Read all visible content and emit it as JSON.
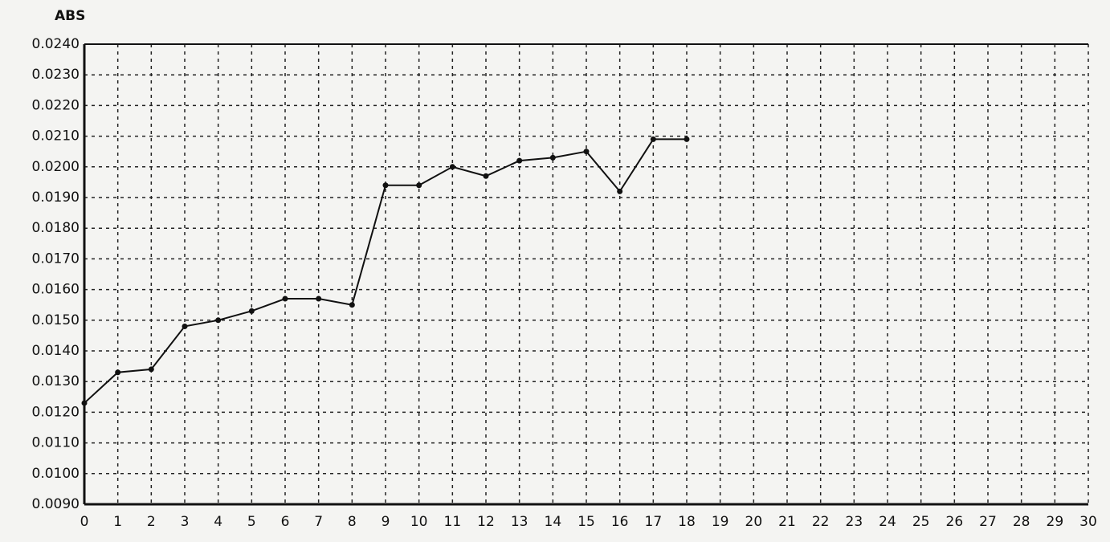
{
  "chart_data": {
    "type": "line",
    "y_label": "ABS",
    "x": [
      0,
      1,
      2,
      3,
      4,
      5,
      6,
      7,
      8,
      9,
      10,
      11,
      12,
      13,
      14,
      15,
      16,
      17,
      18
    ],
    "values": [
      0.0123,
      0.0133,
      0.0134,
      0.0148,
      0.015,
      0.0153,
      0.0157,
      0.0157,
      0.0155,
      0.0194,
      0.0194,
      0.02,
      0.0197,
      0.0202,
      0.0203,
      0.0205,
      0.0192,
      0.0209,
      0.0209
    ],
    "color": "#111111",
    "xlim": [
      0,
      30
    ],
    "xticks": [
      0,
      1,
      2,
      3,
      4,
      5,
      6,
      7,
      8,
      9,
      10,
      11,
      12,
      13,
      14,
      15,
      16,
      17,
      18,
      19,
      20,
      21,
      22,
      23,
      24,
      25,
      26,
      27,
      28,
      29,
      30
    ],
    "ylim": [
      0.009,
      0.024
    ],
    "yticks": [
      {
        "value": 0.009,
        "label": "0.0090"
      },
      {
        "value": 0.01,
        "label": "0.0100"
      },
      {
        "value": 0.011,
        "label": "0.0110"
      },
      {
        "value": 0.012,
        "label": "0.0120"
      },
      {
        "value": 0.013,
        "label": "0.0130"
      },
      {
        "value": 0.014,
        "label": "0.0140"
      },
      {
        "value": 0.015,
        "label": "0.0150"
      },
      {
        "value": 0.016,
        "label": "0.0160"
      },
      {
        "value": 0.017,
        "label": "0.0170"
      },
      {
        "value": 0.018,
        "label": "0.0180"
      },
      {
        "value": 0.019,
        "label": "0.0190"
      },
      {
        "value": 0.02,
        "label": "0.0200"
      },
      {
        "value": 0.021,
        "label": "0.0210"
      },
      {
        "value": 0.022,
        "label": "0.0220"
      },
      {
        "value": 0.023,
        "label": "0.0230"
      },
      {
        "value": 0.024,
        "label": "0.0240"
      }
    ],
    "grid": true
  }
}
